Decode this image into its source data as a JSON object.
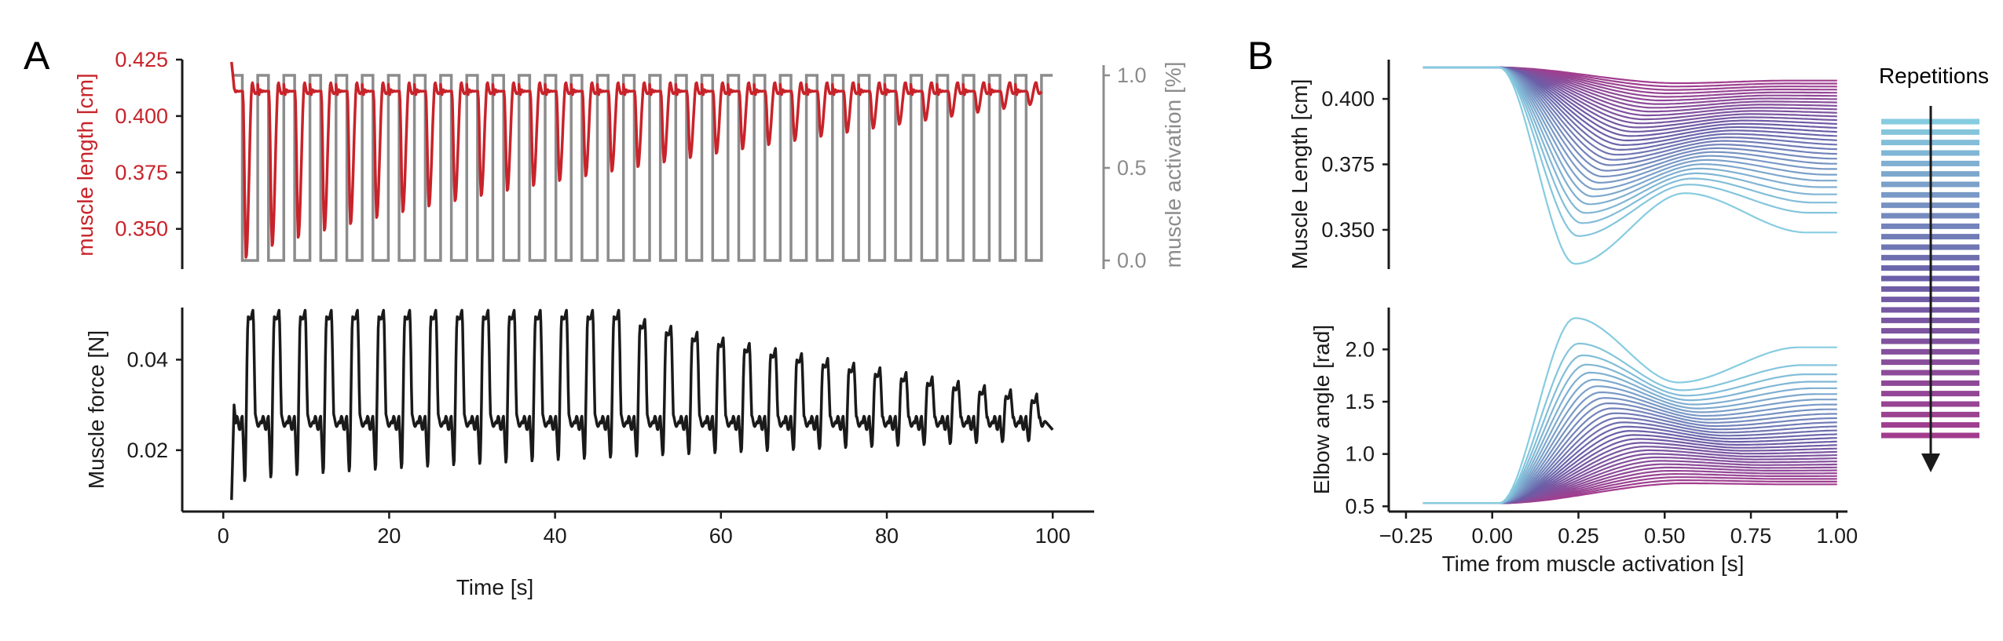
{
  "figure": {
    "panel_a_letter": "A",
    "panel_b_letter": "B",
    "legend_title": "Repetitions"
  },
  "colors": {
    "red": "#c8232a",
    "gray": "#8c8c8c",
    "black": "#1a1a1a",
    "ramp_start": "#86cce0",
    "ramp_mid": "#6a5fa8",
    "ramp_end": "#a23d8e"
  },
  "chart_data": [
    {
      "id": "A_top",
      "type": "line",
      "title": "",
      "xlabel": "",
      "ylabel": "muscle length [cm]",
      "ylabel_right": "muscle activation [%]",
      "xlim": [
        -4,
        105
      ],
      "ylim": [
        0.336,
        0.425
      ],
      "ylim_right": [
        0.0,
        1.0
      ],
      "yticks": [
        0.35,
        0.375,
        0.4,
        0.425
      ],
      "ytick_labels": [
        "0.350",
        "0.375",
        "0.400",
        "0.425"
      ],
      "yticks_right": [
        0.0,
        0.5,
        1.0
      ],
      "ytick_labels_right": [
        "0.0",
        "0.5",
        "1.0"
      ],
      "series": [
        {
          "name": "muscle length",
          "axis": "left",
          "color": "#c8232a",
          "cycle_period_s": 3.15,
          "n_cycles": 31,
          "t_start": 1.0,
          "t_end": 100.0,
          "baseline": 0.411,
          "first_dip_min": 0.337,
          "last_dip_min": 0.405
        },
        {
          "name": "muscle activation",
          "axis": "right",
          "color": "#8c8c8c",
          "cycle_period_s": 3.15,
          "duty_on": 0.55,
          "n_cycles": 31,
          "t_start": 1.0,
          "t_end": 100.0,
          "low": 0.0,
          "high": 1.0
        }
      ]
    },
    {
      "id": "A_bottom",
      "type": "line",
      "title": "",
      "xlabel": "Time [s]",
      "ylabel": "Muscle force [N]",
      "xlim": [
        -4,
        105
      ],
      "ylim": [
        0.008,
        0.051
      ],
      "xticks": [
        0,
        20,
        40,
        60,
        80,
        100
      ],
      "xtick_labels": [
        "0",
        "20",
        "40",
        "60",
        "80",
        "100"
      ],
      "yticks": [
        0.02,
        0.04
      ],
      "ytick_labels": [
        "0.02",
        "0.04"
      ],
      "series": [
        {
          "name": "muscle force",
          "color": "#1a1a1a",
          "cycle_period_s": 3.15,
          "n_cycles": 31,
          "t_start": 1.0,
          "t_end": 100.0,
          "initial": 0.009,
          "plateau": 0.026,
          "peak_max": 0.0495,
          "peak_min_late": 0.031,
          "trough_early": 0.013,
          "trough_late": 0.022,
          "saturated_until_cycle": 14
        }
      ]
    },
    {
      "id": "B_top",
      "type": "line",
      "title": "",
      "xlabel": "",
      "ylabel": "Muscle Length [cm]",
      "xlim": [
        -0.3,
        1.03
      ],
      "ylim": [
        0.335,
        0.415
      ],
      "yticks": [
        0.35,
        0.375,
        0.4
      ],
      "ytick_labels": [
        "0.350",
        "0.375",
        "0.400"
      ],
      "n_series": 31,
      "color_ramp": [
        "#86cce0",
        "#6a5fa8",
        "#a23d8e"
      ],
      "t_start": -0.2,
      "t_end": 1.0,
      "baseline": 0.412,
      "min_first": 0.337,
      "final_first": 0.349,
      "min_last": 0.406,
      "final_last": 0.407
    },
    {
      "id": "B_bottom",
      "type": "line",
      "title": "",
      "xlabel": "Time from muscle activation [s]",
      "ylabel": "Elbow angle [rad]",
      "xlim": [
        -0.3,
        1.03
      ],
      "ylim": [
        0.45,
        2.4
      ],
      "xticks": [
        -0.25,
        0.0,
        0.25,
        0.5,
        0.75,
        1.0
      ],
      "xtick_labels": [
        "−0.25",
        "0.00",
        "0.25",
        "0.50",
        "0.75",
        "1.00"
      ],
      "yticks": [
        0.5,
        1.0,
        1.5,
        2.0
      ],
      "ytick_labels": [
        "0.5",
        "1.0",
        "1.5",
        "2.0"
      ],
      "n_series": 31,
      "color_ramp": [
        "#86cce0",
        "#6a5fa8",
        "#a23d8e"
      ],
      "t_start": -0.2,
      "t_end": 1.0,
      "baseline": 0.53,
      "peak_first": 2.3,
      "final_first": 2.02,
      "peak_last": 0.72,
      "final_last": 0.71
    }
  ]
}
